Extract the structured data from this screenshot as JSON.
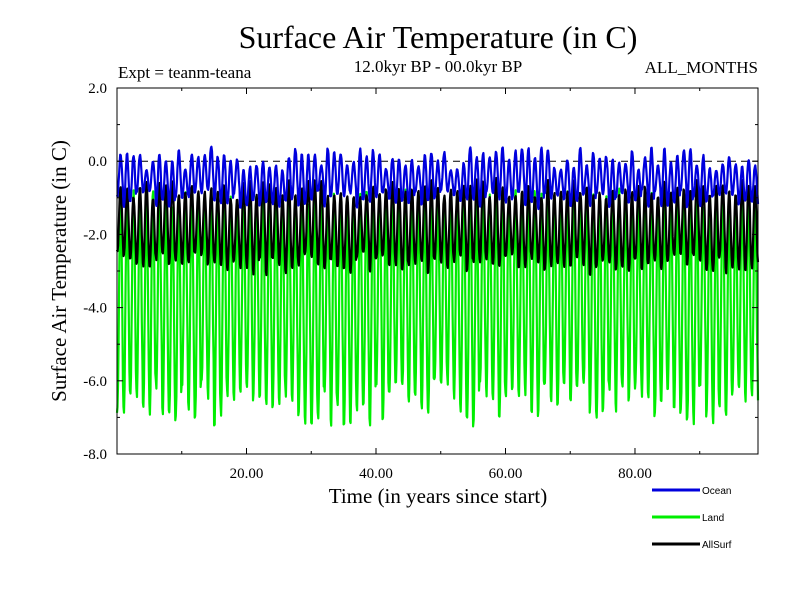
{
  "chart_data": {
    "type": "line",
    "title": "Surface Air Temperature (in C)",
    "subtitle_left": "Expt = teanm-teana",
    "subtitle_center": "12.0kyr BP - 00.0kyr BP",
    "subtitle_right": "ALL_MONTHS",
    "xlabel": "Time (in years since start)",
    "ylabel": "Surface Air Temperature (in C)",
    "xlim": [
      0.0,
      99.0
    ],
    "ylim": [
      -8.0,
      2.0
    ],
    "x_ticks": [
      20,
      40,
      60,
      80
    ],
    "x_tick_labels": [
      "20.00",
      "40.00",
      "60.00",
      "80.00"
    ],
    "y_ticks": [
      -8,
      -6,
      -4,
      -2,
      0,
      2
    ],
    "y_tick_labels": [
      "-8.0",
      "-6.0",
      "-4.0",
      "-2.0",
      "0.0",
      "2.0"
    ],
    "reference_line": {
      "y": 0.0,
      "style": "dashed"
    },
    "grid": false,
    "legend_position": "bottom-right, below plot",
    "series": [
      {
        "name": "Land",
        "color": "#00ee00",
        "sampling": "monthly",
        "mean_range": [
          -3.9,
          -3.6
        ],
        "seasonal_max_range": [
          -1.2,
          -0.8
        ],
        "seasonal_min_range": [
          -7.3,
          -6.0
        ],
        "period_years": 1.0
      },
      {
        "name": "AllSurf",
        "color": "#000000",
        "sampling": "monthly",
        "mean_range": [
          -1.9,
          -1.6
        ],
        "seasonal_max_range": [
          -1.0,
          -0.5
        ],
        "seasonal_min_range": [
          -3.1,
          -2.5
        ],
        "period_years": 1.0
      },
      {
        "name": "Ocean",
        "color": "#0000dd",
        "sampling": "monthly",
        "mean_range": [
          -0.7,
          -0.5
        ],
        "seasonal_max_range": [
          -0.3,
          0.4
        ],
        "seasonal_min_range": [
          -1.3,
          -0.8
        ],
        "period_years": 1.0
      }
    ],
    "legend": [
      {
        "name": "Ocean",
        "color": "#0000dd"
      },
      {
        "name": "Land",
        "color": "#00ee00"
      },
      {
        "name": "AllSurf",
        "color": "#000000"
      }
    ]
  }
}
